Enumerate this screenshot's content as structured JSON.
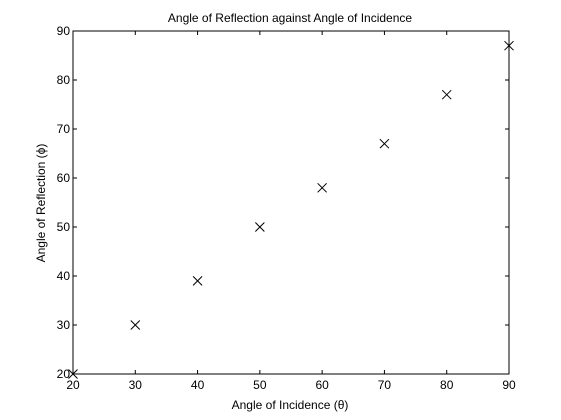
{
  "chart_data": {
    "type": "scatter",
    "title": "Angle of Reflection against Angle of Incidence",
    "xlabel": "Angle of Incidence (θ)",
    "ylabel": "Angle of Reflection (ϕ)",
    "xlim": [
      20,
      90
    ],
    "ylim": [
      20,
      90
    ],
    "xticks": [
      20,
      30,
      40,
      50,
      60,
      70,
      80,
      90
    ],
    "yticks": [
      20,
      30,
      40,
      50,
      60,
      70,
      80,
      90
    ],
    "marker": "x",
    "grid": false,
    "series": [
      {
        "x": [
          20,
          30,
          40,
          50,
          60,
          70,
          80,
          90
        ],
        "y": [
          20,
          30,
          39,
          50,
          58,
          67,
          77,
          87
        ]
      }
    ]
  }
}
